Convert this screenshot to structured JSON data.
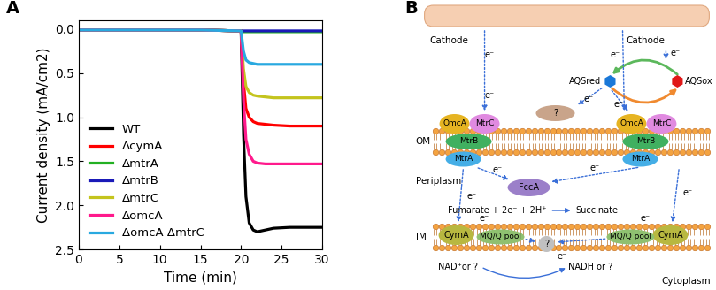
{
  "chart_data": {
    "type": "line",
    "title": "A",
    "x_label": "Time (min)",
    "y_label": "Current density (mA/cm2)",
    "x": [
      0,
      5,
      10,
      15,
      20,
      20.3,
      20.6,
      21,
      21.5,
      22,
      23,
      24,
      26,
      28,
      30
    ],
    "series": [
      {
        "name": "WT",
        "color": "#000000",
        "values": [
          0.01,
          0.01,
          0.01,
          0.01,
          0.02,
          1.2,
          1.9,
          2.2,
          2.28,
          2.3,
          2.28,
          2.26,
          2.25,
          2.25,
          2.25
        ]
      },
      {
        "name": "ΔcymA",
        "color": "#ff0000",
        "values": [
          0.01,
          0.01,
          0.01,
          0.01,
          0.02,
          0.6,
          0.9,
          1.0,
          1.05,
          1.07,
          1.08,
          1.09,
          1.1,
          1.1,
          1.1
        ]
      },
      {
        "name": "ΔmtrA",
        "color": "#22b022",
        "values": [
          0.01,
          0.01,
          0.01,
          0.01,
          0.02,
          0.03,
          0.03,
          0.03,
          0.03,
          0.03,
          0.03,
          0.03,
          0.03,
          0.03,
          0.03
        ]
      },
      {
        "name": "ΔmtrB",
        "color": "#1a1ab8",
        "values": [
          0.01,
          0.01,
          0.01,
          0.01,
          0.02,
          0.02,
          0.02,
          0.02,
          0.02,
          0.02,
          0.02,
          0.02,
          0.02,
          0.02,
          0.02
        ]
      },
      {
        "name": "ΔmtrC",
        "color": "#c4c41e",
        "values": [
          0.01,
          0.01,
          0.01,
          0.01,
          0.02,
          0.45,
          0.65,
          0.72,
          0.75,
          0.76,
          0.77,
          0.78,
          0.78,
          0.78,
          0.78
        ]
      },
      {
        "name": "ΔomcA",
        "color": "#ff1a8c",
        "values": [
          0.01,
          0.01,
          0.01,
          0.01,
          0.02,
          0.8,
          1.25,
          1.42,
          1.5,
          1.52,
          1.53,
          1.53,
          1.53,
          1.53,
          1.53
        ]
      },
      {
        "name": "ΔomcA ΔmtrC",
        "color": "#29a9e0",
        "values": [
          0.01,
          0.01,
          0.01,
          0.01,
          0.02,
          0.25,
          0.35,
          0.38,
          0.39,
          0.4,
          0.4,
          0.4,
          0.4,
          0.4,
          0.4
        ]
      }
    ],
    "xlim": [
      0,
      30
    ],
    "xticks": [
      0,
      5,
      10,
      15,
      20,
      25,
      30
    ],
    "ylim": [
      2.5,
      -0.1
    ],
    "yticks": [
      0.0,
      0.5,
      1.0,
      1.5,
      2.0,
      2.5
    ],
    "legend": "lower left"
  },
  "diagram": {
    "panel_label": "B",
    "cathodes": [
      "Cathode",
      "Cathode"
    ],
    "mediator": {
      "reduced": "AQSred",
      "oxidized": "AQSox"
    },
    "outer_membrane": {
      "label": "OM",
      "complexes": [
        [
          "OmcA",
          "MtrC",
          "MtrB",
          "MtrA"
        ],
        [
          "OmcA",
          "MtrC",
          "MtrB",
          "MtrA"
        ]
      ],
      "unknown": "?"
    },
    "periplasm": {
      "label": "Periplasm",
      "enzyme": "FccA",
      "reaction": {
        "substrates": "Fumarate + 2e⁻ + 2H⁺",
        "product": "Succinate"
      }
    },
    "inner_membrane": {
      "label": "IM",
      "cyma": [
        "CymA",
        "CymA"
      ],
      "pools": [
        "MQ/Q pool",
        "MQ/Q pool"
      ],
      "unknown": "?"
    },
    "cytoplasm": {
      "label": "Cytoplasm",
      "oxidized": "NAD⁺or ?",
      "reduced": "NADH or ?"
    },
    "electrons": [
      "e⁻",
      "e⁻",
      "e⁻",
      "e⁻",
      "e⁻",
      "e⁻",
      "e⁻",
      "e⁻",
      "e⁻",
      "e⁻",
      "e⁻",
      "e⁻",
      "e⁻"
    ]
  }
}
